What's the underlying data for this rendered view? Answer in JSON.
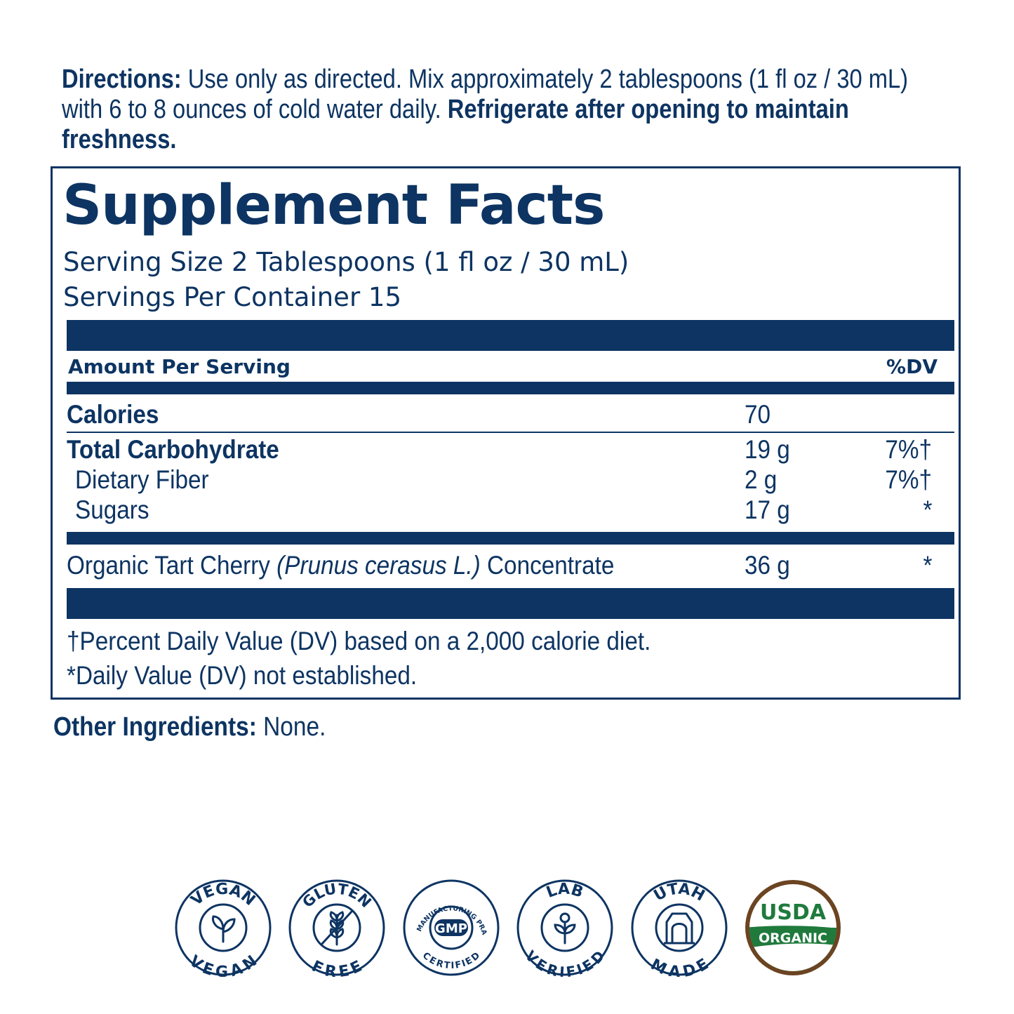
{
  "directions": {
    "label": "Directions:",
    "text": " Use only as directed. Mix approximately 2 tablespoons (1 fl oz / 30 mL) with 6 to 8 ounces of cold water daily. ",
    "bold_text": "Refrigerate after opening to maintain freshness."
  },
  "facts": {
    "title": "Supplement Facts",
    "serving_size": "Serving Size 2 Tablespoons (1 fl oz / 30 mL)",
    "servings_per_container": "Servings Per Container 15",
    "header_left": "Amount Per Serving",
    "header_right": "%DV",
    "rows": [
      {
        "label": "Calories",
        "amount": "70",
        "dv": ""
      },
      {
        "label": "Total Carbohydrate",
        "amount": "19 g",
        "dv": "7%†"
      },
      {
        "label": "Dietary Fiber",
        "amount": "2 g",
        "dv": "7%†"
      },
      {
        "label": "Sugars",
        "amount": "17 g",
        "dv": "*"
      }
    ],
    "ingredient": {
      "label_start": "Organic Tart Cherry ",
      "label_italic": "(Prunus cerasus L.)",
      "label_end": " Concentrate",
      "amount": "36 g",
      "dv": "*"
    },
    "footnote_1": "†Percent Daily Value (DV) based on a 2,000 calorie diet.",
    "footnote_2": "*Daily Value (DV) not established."
  },
  "other_ingredients": {
    "label": "Other Ingredients:",
    "value": " None."
  },
  "badges": {
    "vegan": {
      "top": "VEGAN",
      "bottom": "VEGAN",
      "icon": "sprout-icon"
    },
    "gluten": {
      "top": "GLUTEN",
      "bottom": "FREE",
      "icon": "wheat-crossed-icon"
    },
    "gmp": {
      "top": "GOOD MANUFACTURING PRACTICE",
      "center": "GMP",
      "bottom": "CERTIFIED",
      "icon": "gmp-seal-icon"
    },
    "lab": {
      "top": "LAB",
      "bottom": "VERIFIED",
      "icon": "lab-flask-icon"
    },
    "utah": {
      "top": "UTAH",
      "bottom": "MADE",
      "icon": "arch-icon"
    },
    "usda": {
      "top": "USDA",
      "bottom": "ORGANIC",
      "icon": "usda-organic-seal"
    }
  },
  "colors": {
    "navy": "#0d3462",
    "usda_green": "#1f7a3c",
    "usda_brown": "#6b4422"
  }
}
